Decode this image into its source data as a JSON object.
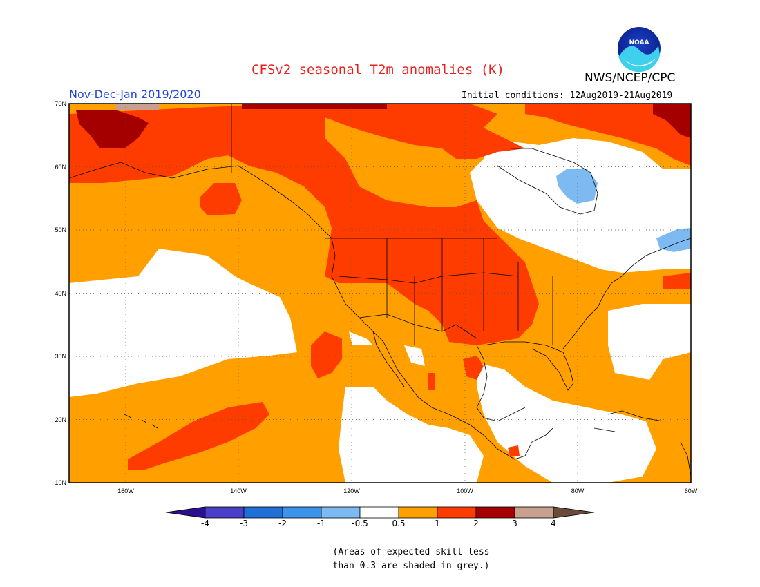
{
  "header": {
    "title": "CFSv2 seasonal T2m anomalies (K)",
    "organization": "NWS/NCEP/CPC",
    "logo_text": "NOAA",
    "period": "Nov-Dec-Jan 2019/2020",
    "initial_conditions": "Initial conditions: 12Aug2019-21Aug2019"
  },
  "map": {
    "lat_labels": [
      "70N",
      "60N",
      "50N",
      "40N",
      "30N",
      "20N",
      "10N"
    ],
    "lon_labels": [
      "160W",
      "140W",
      "120W",
      "100W",
      "80W",
      "60W"
    ],
    "extent": {
      "lon_min": -170,
      "lon_max": -60,
      "lat_min": 10,
      "lat_max": 70
    },
    "gridlines": true
  },
  "colorbar": {
    "labels": [
      "-4",
      "-3",
      "-2",
      "-1",
      "-0.5",
      "0.5",
      "1",
      "2",
      "3",
      "4"
    ],
    "colors": [
      "#2b0f8f",
      "#4a3fc8",
      "#1f6fd6",
      "#3d93ec",
      "#7dbaf2",
      "#ffffff",
      "#ffa000",
      "#ff3c00",
      "#a50000",
      "#c8a090",
      "#6a4a3a"
    ]
  },
  "legend": {
    "skill_note_line1": "(Areas of expected skill less",
    "skill_note_line2": "than 0.3 are shaded in grey.)"
  }
}
